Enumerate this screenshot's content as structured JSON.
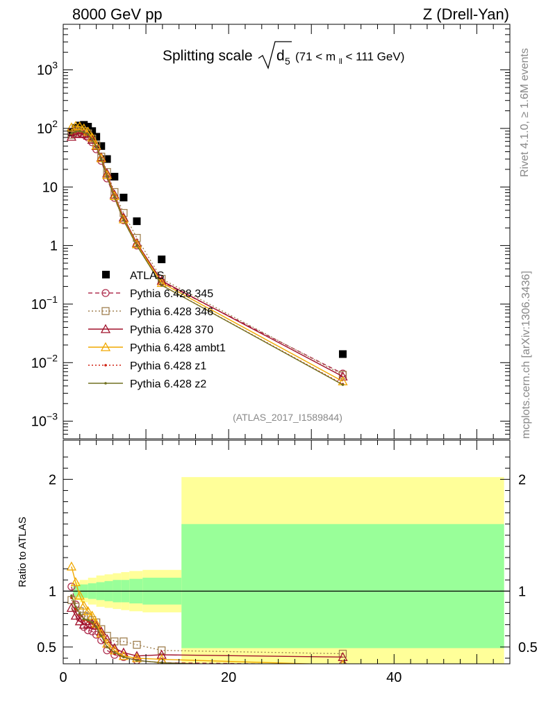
{
  "header": {
    "left": "8000 GeV pp",
    "right": "Z (Drell-Yan)"
  },
  "side_texts": {
    "rivet": "Rivet 4.1.0, ≥ 1.6M events",
    "mcplots": "mcplots.cern.ch [arXiv:1306.3436]"
  },
  "colors": {
    "atlas": "#000000",
    "p345": "#b03050",
    "p346": "#a08050",
    "p370": "#a0102a",
    "ambt1": "#f0a800",
    "z1": "#d02010",
    "z2": "#707020",
    "band_stat": "#99ff99",
    "band_total": "#ffff99"
  },
  "chart_data": [
    {
      "type": "line",
      "title": "Splitting scale",
      "title_symbol": "d",
      "title_subscript": "5",
      "title_cut": "(71 < m",
      "title_cut_sub": "ll",
      "title_cut_end": "< 111 GeV)",
      "yscale": "log",
      "ylim": [
        0.0005,
        6000
      ],
      "xlim": [
        0,
        54
      ],
      "yticks": [
        {
          "value": 0.001,
          "base": "10",
          "exp": "−3"
        },
        {
          "value": 0.01,
          "base": "10",
          "exp": "−2"
        },
        {
          "value": 0.1,
          "base": "10",
          "exp": "−1"
        },
        {
          "value": 1,
          "base": "1",
          "exp": ""
        },
        {
          "value": 10,
          "base": "10",
          "exp": ""
        },
        {
          "value": 100,
          "base": "10",
          "exp": "2"
        },
        {
          "value": 1000,
          "base": "10",
          "exp": "3"
        }
      ],
      "watermark": "(ATLAS_2017_I1589844)",
      "legend_position": "center-left",
      "series": [
        {
          "name": "ATLAS",
          "style": "data",
          "color_key": "atlas",
          "x": [
            1.0,
            1.5,
            2.0,
            2.5,
            3.0,
            3.5,
            4.0,
            4.6,
            5.3,
            6.2,
            7.3,
            8.9,
            11.9,
            33.8
          ],
          "y": [
            85,
            102,
            112,
            115,
            107,
            90,
            72,
            50,
            30,
            15,
            6.6,
            2.6,
            0.58,
            0.014
          ]
        },
        {
          "name": "Pythia 6.428 345",
          "style": "dashed",
          "marker": "circle",
          "color_key": "p345",
          "x": [
            1.0,
            1.5,
            2.0,
            2.5,
            3.0,
            3.5,
            4.0,
            4.6,
            5.3,
            6.2,
            7.3,
            8.9,
            11.9,
            33.8
          ],
          "y": [
            88,
            90,
            85,
            78,
            70,
            58,
            44,
            28,
            14,
            6.5,
            2.7,
            1.0,
            0.24,
            0.0065
          ]
        },
        {
          "name": "Pythia 6.428 346",
          "style": "dotted",
          "marker": "square",
          "color_key": "p346",
          "x": [
            1.0,
            1.5,
            2.0,
            2.5,
            3.0,
            3.5,
            4.0,
            4.6,
            5.3,
            6.2,
            7.3,
            8.9,
            11.9,
            33.8
          ],
          "y": [
            78,
            88,
            92,
            90,
            82,
            67,
            52,
            33,
            18,
            8.2,
            3.6,
            1.35,
            0.27,
            0.0062
          ]
        },
        {
          "name": "Pythia 6.428 370",
          "style": "solid",
          "marker": "triangle",
          "color_key": "p370",
          "x": [
            1.0,
            1.5,
            2.0,
            2.5,
            3.0,
            3.5,
            4.0,
            4.6,
            5.3,
            6.2,
            7.3,
            8.9,
            11.9,
            33.8
          ],
          "y": [
            72,
            80,
            82,
            80,
            75,
            64,
            50,
            32,
            17,
            7.4,
            3.0,
            1.1,
            0.25,
            0.0058
          ]
        },
        {
          "name": "Pythia 6.428 ambt1",
          "style": "solid",
          "marker": "triangle",
          "color_key": "ambt1",
          "x": [
            1.0,
            1.5,
            2.0,
            2.5,
            3.0,
            3.5,
            4.0,
            4.6,
            5.3,
            6.2,
            7.3,
            8.9,
            11.9,
            33.8
          ],
          "y": [
            104,
            110,
            108,
            100,
            88,
            70,
            51,
            31,
            16,
            7.0,
            2.8,
            1.05,
            0.23,
            0.0048
          ]
        },
        {
          "name": "Pythia 6.428 z1",
          "style": "dotted",
          "marker": "dot",
          "color_key": "z1",
          "x": [
            1.0,
            1.5,
            2.0,
            2.5,
            3.0,
            3.5,
            4.0,
            4.6,
            5.3,
            6.2,
            7.3,
            8.9,
            11.9,
            33.8
          ],
          "y": [
            80,
            86,
            88,
            85,
            78,
            64,
            48,
            30,
            15,
            6.6,
            2.7,
            1.0,
            0.21,
            0.0043
          ]
        },
        {
          "name": "Pythia 6.428 z2",
          "style": "solid",
          "marker": "dot",
          "color_key": "z2",
          "x": [
            1.0,
            1.5,
            2.0,
            2.5,
            3.0,
            3.5,
            4.0,
            4.6,
            5.3,
            6.2,
            7.3,
            8.9,
            11.9,
            33.8
          ],
          "y": [
            82,
            88,
            90,
            86,
            79,
            65,
            49,
            30,
            15,
            6.7,
            2.7,
            1.0,
            0.21,
            0.0042
          ]
        }
      ]
    },
    {
      "type": "line",
      "title": "",
      "ylabel": "Ratio to ATLAS",
      "xlim": [
        0,
        54
      ],
      "ylim": [
        0.35,
        2.35
      ],
      "yticks": [
        0.5,
        1,
        2
      ],
      "xticks": [
        0,
        20,
        40
      ],
      "reference_line": 1,
      "bands": [
        {
          "x0": 1.2,
          "x1": 2.0,
          "stat": [
            0.95,
            1.05
          ],
          "total": [
            0.92,
            1.08
          ]
        },
        {
          "x0": 2.0,
          "x1": 3.0,
          "stat": [
            0.94,
            1.06
          ],
          "total": [
            0.9,
            1.1
          ]
        },
        {
          "x0": 3.0,
          "x1": 4.0,
          "stat": [
            0.93,
            1.07
          ],
          "total": [
            0.88,
            1.12
          ]
        },
        {
          "x0": 4.0,
          "x1": 5.0,
          "stat": [
            0.92,
            1.08
          ],
          "total": [
            0.86,
            1.14
          ]
        },
        {
          "x0": 5.0,
          "x1": 6.0,
          "stat": [
            0.91,
            1.09
          ],
          "total": [
            0.85,
            1.15
          ]
        },
        {
          "x0": 6.0,
          "x1": 7.0,
          "stat": [
            0.9,
            1.1
          ],
          "total": [
            0.84,
            1.16
          ]
        },
        {
          "x0": 7.0,
          "x1": 8.0,
          "stat": [
            0.9,
            1.1
          ],
          "total": [
            0.83,
            1.17
          ]
        },
        {
          "x0": 8.0,
          "x1": 9.6,
          "stat": [
            0.89,
            1.11
          ],
          "total": [
            0.82,
            1.18
          ]
        },
        {
          "x0": 9.6,
          "x1": 14.3,
          "stat": [
            0.88,
            1.12
          ],
          "total": [
            0.81,
            1.19
          ]
        },
        {
          "x0": 14.3,
          "x1": 53.3,
          "stat": [
            0.49,
            1.6
          ],
          "total": [
            0.3,
            2.02
          ]
        }
      ],
      "series": [
        {
          "name": "Pythia 6.428 345",
          "style": "dashed",
          "marker": "circle",
          "color_key": "p345",
          "x": [
            1.0,
            1.5,
            2.0,
            2.5,
            3.0,
            3.5,
            4.0,
            4.6,
            5.3,
            6.2,
            7.3,
            8.9,
            11.9,
            33.8
          ],
          "y": [
            1.04,
            0.88,
            0.76,
            0.68,
            0.65,
            0.64,
            0.61,
            0.56,
            0.47,
            0.43,
            0.41,
            0.38,
            0.36,
            0.34
          ]
        },
        {
          "name": "Pythia 6.428 346",
          "style": "dotted",
          "marker": "square",
          "color_key": "p346",
          "x": [
            1.0,
            1.5,
            2.0,
            2.5,
            3.0,
            3.5,
            4.0,
            4.6,
            5.3,
            6.2,
            7.3,
            8.9,
            11.9,
            33.8
          ],
          "y": [
            0.92,
            0.86,
            0.82,
            0.78,
            0.77,
            0.74,
            0.72,
            0.66,
            0.6,
            0.55,
            0.55,
            0.52,
            0.47,
            0.44
          ]
        },
        {
          "name": "Pythia 6.428 370",
          "style": "solid",
          "marker": "triangle",
          "color_key": "p370",
          "x": [
            1.0,
            1.5,
            2.0,
            2.5,
            3.0,
            3.5,
            4.0,
            4.6,
            5.3,
            6.2,
            7.3,
            8.9,
            11.9,
            33.8
          ],
          "y": [
            0.85,
            0.78,
            0.73,
            0.7,
            0.7,
            0.71,
            0.69,
            0.64,
            0.57,
            0.49,
            0.45,
            0.42,
            0.43,
            0.41
          ]
        },
        {
          "name": "Pythia 6.428 ambt1",
          "style": "solid",
          "marker": "triangle",
          "color_key": "ambt1",
          "x": [
            1.0,
            1.5,
            2.0,
            2.5,
            3.0,
            3.5,
            4.0,
            4.6,
            5.3,
            6.2,
            7.3,
            8.9,
            11.9,
            33.8
          ],
          "y": [
            1.22,
            1.08,
            0.96,
            0.87,
            0.82,
            0.78,
            0.71,
            0.62,
            0.53,
            0.47,
            0.42,
            0.4,
            0.39,
            0.34
          ]
        },
        {
          "name": "Pythia 6.428 z1",
          "style": "dotted",
          "marker": "dot",
          "color_key": "z1",
          "x": [
            1.0,
            1.5,
            2.0,
            2.5,
            3.0,
            3.5,
            4.0,
            4.6,
            5.3,
            6.2,
            7.3,
            8.9,
            11.9,
            33.8
          ],
          "y": [
            0.94,
            0.84,
            0.79,
            0.74,
            0.73,
            0.71,
            0.67,
            0.6,
            0.5,
            0.44,
            0.41,
            0.38,
            0.36,
            0.31
          ]
        },
        {
          "name": "Pythia 6.428 z2",
          "style": "solid",
          "marker": "dot",
          "color_key": "z2",
          "x": [
            1.0,
            1.5,
            2.0,
            2.5,
            3.0,
            3.5,
            4.0,
            4.6,
            5.3,
            6.2,
            7.3,
            8.9,
            11.9,
            33.8
          ],
          "y": [
            0.96,
            0.86,
            0.8,
            0.75,
            0.74,
            0.72,
            0.68,
            0.6,
            0.5,
            0.45,
            0.41,
            0.38,
            0.36,
            0.3
          ]
        }
      ]
    }
  ]
}
